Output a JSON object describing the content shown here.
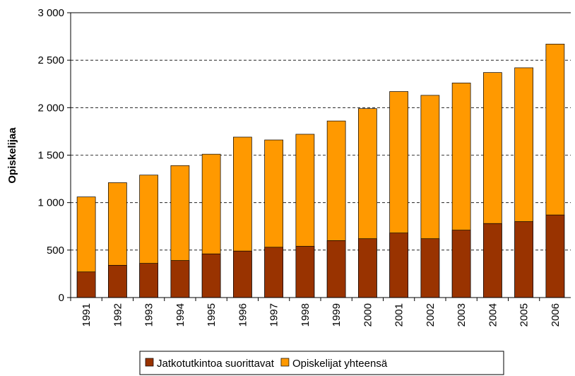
{
  "chart_data": {
    "type": "bar",
    "y_label": "Opiskelijaa",
    "categories": [
      "1991",
      "1992",
      "1993",
      "1994",
      "1995",
      "1996",
      "1997",
      "1998",
      "1999",
      "2000",
      "2001",
      "2002",
      "2003",
      "2004",
      "2005",
      "2006"
    ],
    "series": [
      {
        "name": "Opiskelijat yhteensä",
        "color": "#ff9900",
        "values": [
          1060,
          1210,
          1290,
          1390,
          1510,
          1690,
          1660,
          1720,
          1860,
          1990,
          2170,
          2130,
          2260,
          2370,
          2420,
          2670
        ]
      },
      {
        "name": "Jatkotutkintoa suorittavat",
        "color": "#993300",
        "values": [
          270,
          340,
          360,
          390,
          460,
          490,
          530,
          540,
          600,
          620,
          680,
          620,
          710,
          780,
          800,
          870
        ]
      }
    ],
    "ylim": [
      0,
      3000
    ],
    "yticks": [
      0,
      500,
      {
        "value": 1000,
        "label": "1 000"
      },
      {
        "value": 1500,
        "label": "1 500"
      },
      {
        "value": 2000,
        "label": "2 000"
      },
      {
        "value": 2500,
        "label": "2 500"
      },
      {
        "value": 3000,
        "label": "3 000"
      }
    ],
    "grid": true
  }
}
